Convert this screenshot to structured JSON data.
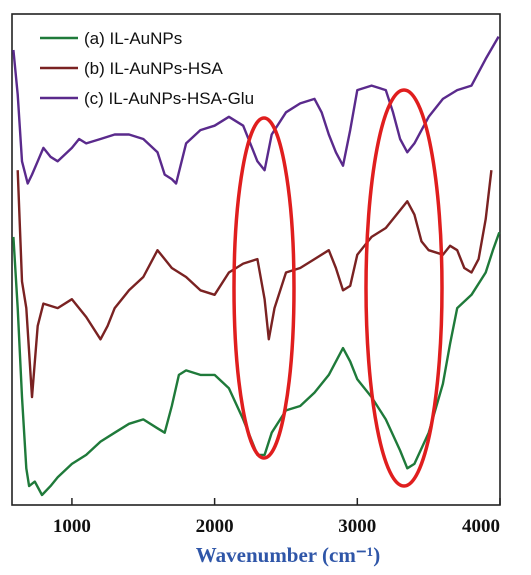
{
  "chart_data": {
    "type": "line",
    "title": "",
    "xlabel": "Wavenumber (cm⁻¹)",
    "ylabel": "",
    "xlim": [
      580,
      4000
    ],
    "ylim": [
      0,
      100
    ],
    "x_ticks": [
      {
        "value": 1000,
        "label": "1000"
      },
      {
        "value": 2000,
        "label": "2000"
      },
      {
        "value": 3000,
        "label": "3000"
      },
      {
        "value": 4000,
        "label": "4000"
      }
    ],
    "legend_position": "top-left",
    "series": [
      {
        "name": "(a) IL-AuNPs",
        "color": "#1f7a3a",
        "points": [
          [
            590,
            58
          ],
          [
            620,
            42
          ],
          [
            650,
            22
          ],
          [
            680,
            6
          ],
          [
            700,
            2
          ],
          [
            740,
            3
          ],
          [
            790,
            0
          ],
          [
            850,
            2
          ],
          [
            900,
            4
          ],
          [
            1000,
            7
          ],
          [
            1100,
            9
          ],
          [
            1200,
            12
          ],
          [
            1300,
            14
          ],
          [
            1400,
            16
          ],
          [
            1500,
            17
          ],
          [
            1600,
            15
          ],
          [
            1650,
            14
          ],
          [
            1700,
            20
          ],
          [
            1750,
            27
          ],
          [
            1800,
            28
          ],
          [
            1900,
            27
          ],
          [
            2000,
            27
          ],
          [
            2100,
            24
          ],
          [
            2200,
            17
          ],
          [
            2300,
            9
          ],
          [
            2350,
            9
          ],
          [
            2400,
            14
          ],
          [
            2500,
            19
          ],
          [
            2600,
            20
          ],
          [
            2700,
            23
          ],
          [
            2800,
            27
          ],
          [
            2900,
            33
          ],
          [
            2950,
            30
          ],
          [
            3000,
            26
          ],
          [
            3100,
            22
          ],
          [
            3200,
            17
          ],
          [
            3300,
            10
          ],
          [
            3350,
            6
          ],
          [
            3400,
            7
          ],
          [
            3500,
            14
          ],
          [
            3600,
            25
          ],
          [
            3650,
            34
          ],
          [
            3700,
            42
          ],
          [
            3800,
            45
          ],
          [
            3900,
            50
          ],
          [
            3950,
            55
          ],
          [
            3995,
            59
          ]
        ]
      },
      {
        "name": "(b) IL-AuNPs-HSA",
        "color": "#7a2222",
        "points": [
          [
            620,
            73
          ],
          [
            650,
            48
          ],
          [
            680,
            42
          ],
          [
            720,
            22
          ],
          [
            760,
            38
          ],
          [
            800,
            43
          ],
          [
            900,
            42
          ],
          [
            1000,
            44
          ],
          [
            1100,
            40
          ],
          [
            1200,
            35
          ],
          [
            1250,
            38
          ],
          [
            1300,
            42
          ],
          [
            1400,
            46
          ],
          [
            1500,
            49
          ],
          [
            1600,
            55
          ],
          [
            1650,
            53
          ],
          [
            1700,
            51
          ],
          [
            1800,
            49
          ],
          [
            1900,
            46
          ],
          [
            2000,
            45
          ],
          [
            2100,
            50
          ],
          [
            2200,
            52
          ],
          [
            2300,
            53
          ],
          [
            2350,
            44
          ],
          [
            2380,
            35
          ],
          [
            2420,
            42
          ],
          [
            2500,
            50
          ],
          [
            2600,
            51
          ],
          [
            2700,
            53
          ],
          [
            2800,
            55
          ],
          [
            2850,
            51
          ],
          [
            2900,
            46
          ],
          [
            2950,
            47
          ],
          [
            3000,
            54
          ],
          [
            3100,
            58
          ],
          [
            3200,
            60
          ],
          [
            3300,
            64
          ],
          [
            3350,
            66
          ],
          [
            3400,
            63
          ],
          [
            3450,
            57
          ],
          [
            3500,
            55
          ],
          [
            3600,
            54
          ],
          [
            3650,
            56
          ],
          [
            3700,
            55
          ],
          [
            3750,
            51
          ],
          [
            3800,
            50
          ],
          [
            3850,
            53
          ],
          [
            3900,
            62
          ],
          [
            3940,
            73
          ]
        ]
      },
      {
        "name": "(c) IL-AuNPs-HSA-Glu",
        "color": "#5a2a8c",
        "points": [
          [
            590,
            100
          ],
          [
            620,
            90
          ],
          [
            650,
            75
          ],
          [
            690,
            70
          ],
          [
            720,
            72
          ],
          [
            760,
            75
          ],
          [
            800,
            78
          ],
          [
            850,
            76
          ],
          [
            900,
            75
          ],
          [
            1000,
            78
          ],
          [
            1050,
            80
          ],
          [
            1100,
            79
          ],
          [
            1200,
            80
          ],
          [
            1300,
            81
          ],
          [
            1400,
            81
          ],
          [
            1500,
            80
          ],
          [
            1600,
            77
          ],
          [
            1650,
            72
          ],
          [
            1700,
            71
          ],
          [
            1730,
            70
          ],
          [
            1800,
            79
          ],
          [
            1900,
            82
          ],
          [
            2000,
            83
          ],
          [
            2100,
            85
          ],
          [
            2200,
            83
          ],
          [
            2300,
            75
          ],
          [
            2350,
            73
          ],
          [
            2400,
            81
          ],
          [
            2500,
            86
          ],
          [
            2600,
            88
          ],
          [
            2700,
            89
          ],
          [
            2750,
            86
          ],
          [
            2800,
            81
          ],
          [
            2850,
            77
          ],
          [
            2900,
            74
          ],
          [
            2950,
            82
          ],
          [
            3000,
            91
          ],
          [
            3100,
            92
          ],
          [
            3200,
            91
          ],
          [
            3250,
            86
          ],
          [
            3300,
            80
          ],
          [
            3350,
            77
          ],
          [
            3400,
            79
          ],
          [
            3500,
            85
          ],
          [
            3600,
            89
          ],
          [
            3700,
            91
          ],
          [
            3800,
            92
          ],
          [
            3900,
            98
          ],
          [
            3990,
            103
          ]
        ]
      }
    ],
    "annotations": [
      {
        "type": "ellipse",
        "label": "",
        "color": "#e01e1e"
      },
      {
        "type": "ellipse",
        "label": "",
        "color": "#e01e1e"
      }
    ]
  }
}
